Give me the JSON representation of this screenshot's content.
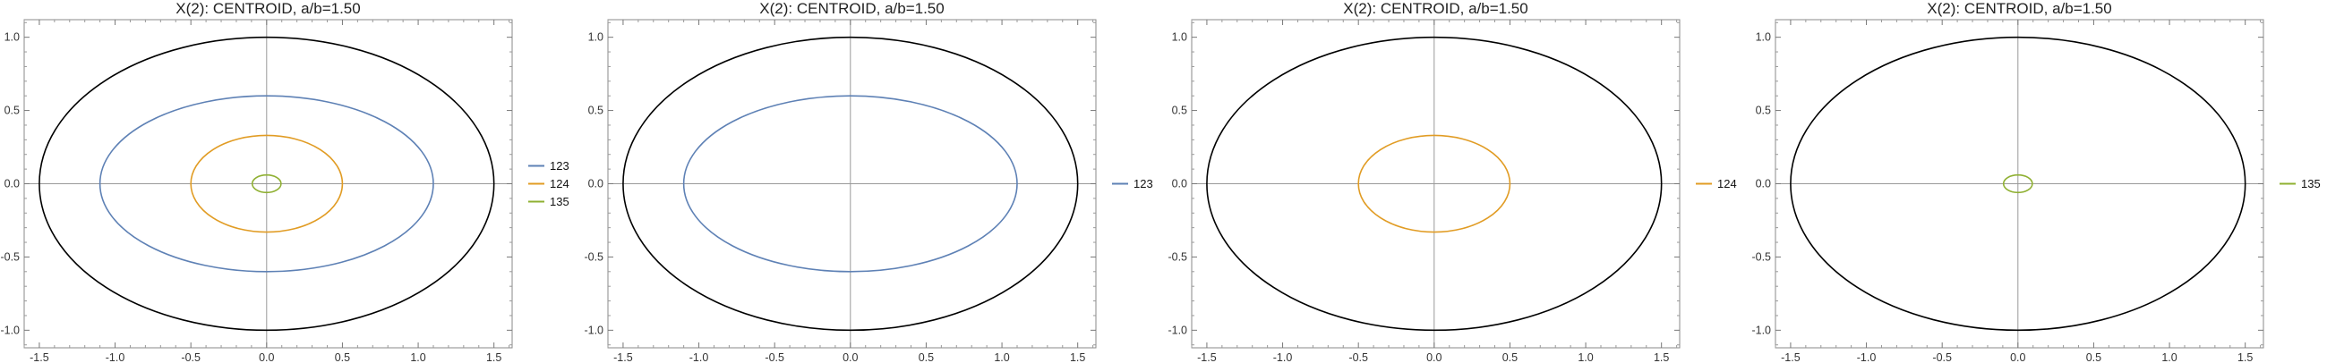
{
  "chart_data": [
    {
      "type": "line",
      "title": "X(2): CENTROID, a/b=1.50",
      "xlabel": "",
      "ylabel": "",
      "xlim": [
        -1.6,
        1.62
      ],
      "ylim": [
        -1.12,
        1.12
      ],
      "xticks": [
        -1.5,
        -1.0,
        -0.5,
        0.0,
        0.5,
        1.0,
        1.5
      ],
      "xtick_labels": [
        "-1.5",
        "-1.0",
        "-0.5",
        "0.0",
        "0.5",
        "1.0",
        "1.5"
      ],
      "yticks": [
        -1.0,
        -0.5,
        0.0,
        0.5,
        1.0
      ],
      "ytick_labels": [
        "-1.0",
        "-0.5",
        "0.0",
        "0.5",
        "1.0"
      ],
      "outer_ellipse": {
        "a": 1.5,
        "b": 1.0,
        "color": "#000000"
      },
      "series": [
        {
          "name": "123",
          "a": 1.1,
          "b": 0.6,
          "color": "#5e81b5"
        },
        {
          "name": "124",
          "a": 0.5,
          "b": 0.33,
          "color": "#e19c24"
        },
        {
          "name": "135",
          "a": 0.095,
          "b": 0.06,
          "color": "#8fb032"
        }
      ],
      "legend": "right"
    },
    {
      "type": "line",
      "title": "X(2): CENTROID, a/b=1.50",
      "xlabel": "",
      "ylabel": "",
      "xlim": [
        -1.6,
        1.62
      ],
      "ylim": [
        -1.12,
        1.12
      ],
      "xticks": [
        -1.5,
        -1.0,
        -0.5,
        0.0,
        0.5,
        1.0,
        1.5
      ],
      "xtick_labels": [
        "-1.5",
        "-1.0",
        "-0.5",
        "0.0",
        "0.5",
        "1.0",
        "1.5"
      ],
      "yticks": [
        -1.0,
        -0.5,
        0.0,
        0.5,
        1.0
      ],
      "ytick_labels": [
        "-1.0",
        "-0.5",
        "0.0",
        "0.5",
        "1.0"
      ],
      "outer_ellipse": {
        "a": 1.5,
        "b": 1.0,
        "color": "#000000"
      },
      "series": [
        {
          "name": "123",
          "a": 1.1,
          "b": 0.6,
          "color": "#5e81b5"
        }
      ],
      "legend": "right"
    },
    {
      "type": "line",
      "title": "X(2): CENTROID, a/b=1.50",
      "xlabel": "",
      "ylabel": "",
      "xlim": [
        -1.6,
        1.62
      ],
      "ylim": [
        -1.12,
        1.12
      ],
      "xticks": [
        -1.5,
        -1.0,
        -0.5,
        0.0,
        0.5,
        1.0,
        1.5
      ],
      "xtick_labels": [
        "-1.5",
        "-1.0",
        "-0.5",
        "0.0",
        "0.5",
        "1.0",
        "1.5"
      ],
      "yticks": [
        -1.0,
        -0.5,
        0.0,
        0.5,
        1.0
      ],
      "ytick_labels": [
        "-1.0",
        "-0.5",
        "0.0",
        "0.5",
        "1.0"
      ],
      "outer_ellipse": {
        "a": 1.5,
        "b": 1.0,
        "color": "#000000"
      },
      "series": [
        {
          "name": "124",
          "a": 0.5,
          "b": 0.33,
          "color": "#e19c24"
        }
      ],
      "legend": "right"
    },
    {
      "type": "line",
      "title": "X(2): CENTROID, a/b=1.50",
      "xlabel": "",
      "ylabel": "",
      "xlim": [
        -1.6,
        1.62
      ],
      "ylim": [
        -1.12,
        1.12
      ],
      "xticks": [
        -1.5,
        -1.0,
        -0.5,
        0.0,
        0.5,
        1.0,
        1.5
      ],
      "xtick_labels": [
        "-1.5",
        "-1.0",
        "-0.5",
        "0.0",
        "0.5",
        "1.0",
        "1.5"
      ],
      "yticks": [
        -1.0,
        -0.5,
        0.0,
        0.5,
        1.0
      ],
      "ytick_labels": [
        "-1.0",
        "-0.5",
        "0.0",
        "0.5",
        "1.0"
      ],
      "outer_ellipse": {
        "a": 1.5,
        "b": 1.0,
        "color": "#000000"
      },
      "series": [
        {
          "name": "135",
          "a": 0.095,
          "b": 0.06,
          "color": "#8fb032"
        }
      ],
      "legend": "right"
    }
  ]
}
